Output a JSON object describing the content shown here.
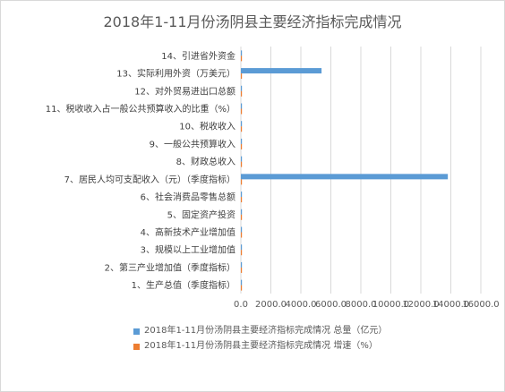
{
  "chart_data": {
    "type": "bar",
    "orientation": "horizontal",
    "title": "2018年1-11月份汤阴县主要经济指标完成情况",
    "categories": [
      "1、生产总值（季度指标）",
      "2、第三产业增加值（季度指标）",
      "3、规模以上工业增加值",
      "4、高新技术产业增加值",
      "5、固定资产投资",
      "6、社会消费品零售总额",
      "7、居民人均可支配收入（元）（季度指标）",
      "8、财政总收入",
      "9、一般公共预算收入",
      "10、税收收入",
      "11、税收收入占一般公共预算收入的比重（%）",
      "12、对外贸易进出口总额",
      "13、实际利用外资（万美元）",
      "14、引进省外资金"
    ],
    "series": [
      {
        "name": "2018年1-11月份汤阴县主要经济指标完成情况 总量（亿元）",
        "color": "#5b9bd5",
        "values": [
          34,
          12,
          6,
          3,
          10,
          9,
          13800,
          3,
          2,
          1,
          40,
          1,
          5380,
          9
        ]
      },
      {
        "name": "2018年1-11月份汤阴县主要经济指标完成情况 增速（%）",
        "color": "#ed7d31",
        "values": [
          8,
          11,
          8,
          11,
          12,
          10,
          9,
          8,
          7,
          6,
          0,
          10,
          12,
          10
        ]
      }
    ],
    "xlim": [
      0,
      16000
    ],
    "xticks": [
      "0.0",
      "2000.0",
      "4000.0",
      "6000.0",
      "8000.0",
      "10000.0",
      "12000.0",
      "14000.0",
      "16000.0"
    ],
    "grid": true,
    "legend": "bottom"
  }
}
